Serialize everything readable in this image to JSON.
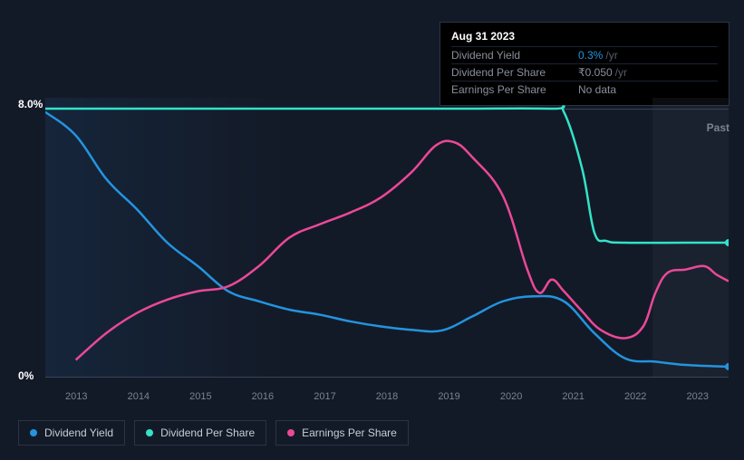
{
  "tooltip": {
    "title": "Aug 31 2023",
    "rows": [
      {
        "label": "Dividend Yield",
        "value": "0.3%",
        "unit": "/yr",
        "highlight": true
      },
      {
        "label": "Dividend Per Share",
        "value": "₹0.050",
        "unit": "/yr",
        "highlight": false
      },
      {
        "label": "Earnings Per Share",
        "value": "No data",
        "unit": "",
        "highlight": false
      }
    ]
  },
  "chart": {
    "type": "line",
    "background": "#131a27",
    "y_top_label": "8.0%",
    "y_bottom_label": "0%",
    "ylim": [
      0,
      8
    ],
    "x_categories": [
      "2013",
      "2014",
      "2015",
      "2016",
      "2017",
      "2018",
      "2019",
      "2020",
      "2021",
      "2022",
      "2023"
    ],
    "xlim": [
      2012.5,
      2023.7
    ],
    "past_label": "Past",
    "baseline_top_y": 120,
    "baseline_bottom_y": 416,
    "shade_start_year": 2022.5,
    "series": [
      {
        "name": "Dividend Yield",
        "legend": "Dividend Yield",
        "color": "#2394df",
        "end_dot": true,
        "points": [
          [
            2012.5,
            7.9
          ],
          [
            2013,
            7.2
          ],
          [
            2013.5,
            5.9
          ],
          [
            2014,
            5.0
          ],
          [
            2014.5,
            4.0
          ],
          [
            2015,
            3.3
          ],
          [
            2015.5,
            2.55
          ],
          [
            2016,
            2.25
          ],
          [
            2016.5,
            2.0
          ],
          [
            2017,
            1.85
          ],
          [
            2017.5,
            1.65
          ],
          [
            2018,
            1.5
          ],
          [
            2018.5,
            1.4
          ],
          [
            2019,
            1.38
          ],
          [
            2019.5,
            1.8
          ],
          [
            2020,
            2.25
          ],
          [
            2020.5,
            2.4
          ],
          [
            2021,
            2.25
          ],
          [
            2021.5,
            1.3
          ],
          [
            2022,
            0.55
          ],
          [
            2022.5,
            0.45
          ],
          [
            2023,
            0.35
          ],
          [
            2023.7,
            0.3
          ]
        ]
      },
      {
        "name": "Dividend Per Share",
        "legend": "Dividend Per Share",
        "color": "#34e2c8",
        "end_dot": true,
        "points": [
          [
            2012.5,
            8.0
          ],
          [
            2013,
            8.0
          ],
          [
            2016,
            8.0
          ],
          [
            2019,
            8.0
          ],
          [
            2020.8,
            8.0
          ],
          [
            2021.0,
            7.9
          ],
          [
            2021.3,
            6.2
          ],
          [
            2021.5,
            4.3
          ],
          [
            2021.7,
            4.05
          ],
          [
            2022,
            4.0
          ],
          [
            2023,
            4.0
          ],
          [
            2023.7,
            4.0
          ]
        ]
      },
      {
        "name": "Earnings Per Share",
        "legend": "Earnings Per Share",
        "color": "#eb4898",
        "end_dot": false,
        "points": [
          [
            2013.0,
            0.5
          ],
          [
            2013.5,
            1.3
          ],
          [
            2014,
            1.9
          ],
          [
            2014.5,
            2.3
          ],
          [
            2015,
            2.55
          ],
          [
            2015.5,
            2.7
          ],
          [
            2016,
            3.3
          ],
          [
            2016.5,
            4.15
          ],
          [
            2017,
            4.55
          ],
          [
            2017.5,
            4.9
          ],
          [
            2018,
            5.35
          ],
          [
            2018.5,
            6.1
          ],
          [
            2018.9,
            6.9
          ],
          [
            2019.2,
            7.0
          ],
          [
            2019.5,
            6.55
          ],
          [
            2020,
            5.4
          ],
          [
            2020.4,
            3.2
          ],
          [
            2020.6,
            2.5
          ],
          [
            2020.8,
            2.9
          ],
          [
            2021.0,
            2.55
          ],
          [
            2021.3,
            1.95
          ],
          [
            2021.6,
            1.4
          ],
          [
            2022,
            1.15
          ],
          [
            2022.3,
            1.5
          ],
          [
            2022.5,
            2.5
          ],
          [
            2022.7,
            3.1
          ],
          [
            2023,
            3.2
          ],
          [
            2023.3,
            3.3
          ],
          [
            2023.5,
            3.05
          ],
          [
            2023.7,
            2.85
          ]
        ]
      }
    ]
  },
  "legend_items": [
    {
      "label": "Dividend Yield",
      "color": "#2394df"
    },
    {
      "label": "Dividend Per Share",
      "color": "#34e2c8"
    },
    {
      "label": "Earnings Per Share",
      "color": "#eb4898"
    }
  ]
}
